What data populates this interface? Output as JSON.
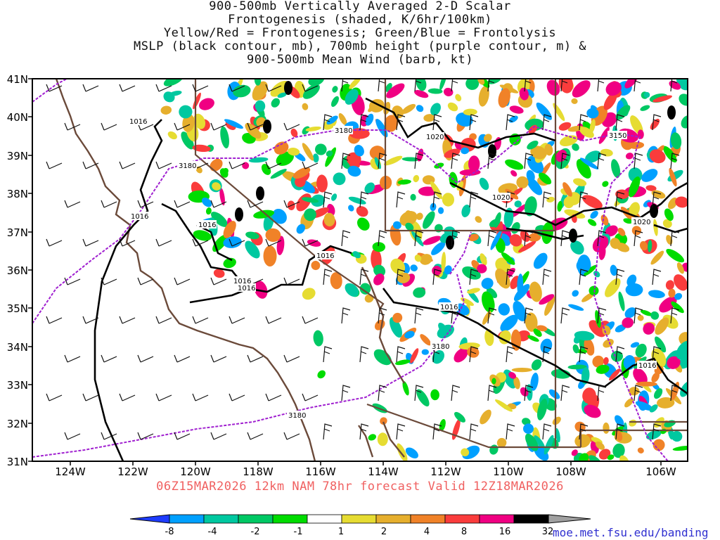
{
  "title_lines": [
    "900-500mb Vertically Averaged 2-D Scalar",
    "Frontogenesis (shaded, K/6hr/100km)",
    "Yellow/Red = Frontogenesis;  Green/Blue = Frontolysis",
    "MSLP (black contour, mb), 700mb height (purple contour, m) &",
    "900-500mb Mean Wind (barb, kt)"
  ],
  "lat_labels": [
    "41N",
    "40N",
    "39N",
    "38N",
    "37N",
    "36N",
    "35N",
    "34N",
    "33N",
    "32N",
    "31N"
  ],
  "lon_labels": [
    "124W",
    "122W",
    "120W",
    "118W",
    "116W",
    "114W",
    "112W",
    "110W",
    "108W",
    "106W"
  ],
  "forecast_line": "06Z15MAR2026 12km NAM 78hr forecast Valid 12Z18MAR2026",
  "colorbar": {
    "labels": [
      "-8",
      "-4",
      "-2",
      "-1",
      "1",
      "2",
      "4",
      "8",
      "16",
      "32"
    ],
    "colors": [
      "#1e3cff",
      "#00a0ff",
      "#00c8a0",
      "#00c864",
      "#00dc00",
      "#ffffff",
      "#e6dc32",
      "#e6af2d",
      "#f08228",
      "#fa3c3c",
      "#f00082",
      "#000000",
      "#a0a0a0"
    ]
  },
  "contour_labels": {
    "mslp": [
      "1016",
      "1016",
      "1016",
      "1016",
      "1016",
      "1016",
      "1016",
      "1020",
      "1020",
      "1020",
      "1016"
    ],
    "height": [
      "3180",
      "3180",
      "3150",
      "3180",
      "3180"
    ]
  },
  "credit": "moe.met.fsu.edu/banding"
}
